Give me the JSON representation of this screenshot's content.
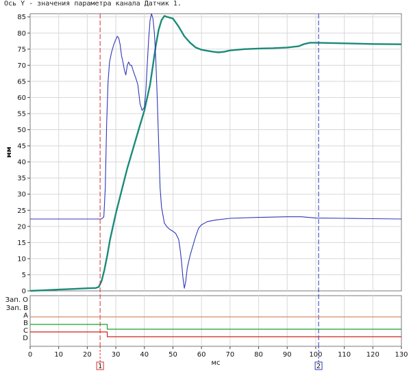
{
  "caption": "Ось Y - значения параметра канала Датчик 1.",
  "chart_data": {
    "type": "line",
    "ylabel": "мм",
    "xlabel": "мс",
    "xlim": [
      0,
      130
    ],
    "ylim": [
      0,
      86
    ],
    "x_ticks": [
      0,
      10,
      20,
      30,
      40,
      50,
      60,
      70,
      80,
      90,
      100,
      110,
      120,
      130
    ],
    "y_ticks": [
      0,
      5,
      10,
      15,
      20,
      25,
      30,
      35,
      40,
      45,
      50,
      55,
      60,
      65,
      70,
      75,
      80,
      85
    ],
    "grid": true,
    "series": [
      {
        "color": "#1a8a78",
        "points": [
          [
            0,
            0
          ],
          [
            5,
            0.2
          ],
          [
            10,
            0.4
          ],
          [
            15,
            0.6
          ],
          [
            20,
            0.8
          ],
          [
            23,
            0.9
          ],
          [
            24,
            1.2
          ],
          [
            25,
            3
          ],
          [
            26,
            6.5
          ],
          [
            27,
            11
          ],
          [
            28,
            16
          ],
          [
            30,
            24
          ],
          [
            32,
            31
          ],
          [
            34,
            38
          ],
          [
            36,
            44
          ],
          [
            38,
            50
          ],
          [
            40,
            56
          ],
          [
            42,
            64
          ],
          [
            43,
            70
          ],
          [
            44,
            76
          ],
          [
            45,
            81
          ],
          [
            46,
            84
          ],
          [
            47,
            85.3
          ],
          [
            48,
            85
          ],
          [
            50,
            84.5
          ],
          [
            52,
            82
          ],
          [
            54,
            79
          ],
          [
            56,
            77
          ],
          [
            58,
            75.5
          ],
          [
            60,
            74.8
          ],
          [
            62,
            74.5
          ],
          [
            64,
            74.2
          ],
          [
            66,
            74
          ],
          [
            68,
            74.2
          ],
          [
            70,
            74.6
          ],
          [
            75,
            75
          ],
          [
            80,
            75.2
          ],
          [
            85,
            75.3
          ],
          [
            90,
            75.5
          ],
          [
            94,
            75.9
          ],
          [
            96,
            76.6
          ],
          [
            98,
            77
          ],
          [
            100,
            77
          ],
          [
            110,
            76.8
          ],
          [
            120,
            76.6
          ],
          [
            130,
            76.5
          ]
        ]
      },
      {
        "color": "#2e35b8",
        "points": [
          [
            0,
            22.3
          ],
          [
            10,
            22.3
          ],
          [
            20,
            22.3
          ],
          [
            25,
            22.3
          ],
          [
            25.8,
            23
          ],
          [
            26.3,
            32
          ],
          [
            26.8,
            52
          ],
          [
            27.3,
            65
          ],
          [
            27.8,
            71
          ],
          [
            28.5,
            74
          ],
          [
            29.3,
            76.5
          ],
          [
            30,
            78
          ],
          [
            30.5,
            79
          ],
          [
            31,
            78.5
          ],
          [
            31.5,
            76.5
          ],
          [
            32,
            73
          ],
          [
            32.5,
            71
          ],
          [
            33,
            68.5
          ],
          [
            33.5,
            67
          ],
          [
            34,
            70
          ],
          [
            34.5,
            71
          ],
          [
            35,
            70
          ],
          [
            35.5,
            70
          ],
          [
            36,
            68.5
          ],
          [
            37,
            66
          ],
          [
            37.7,
            64
          ],
          [
            38.5,
            58
          ],
          [
            39.2,
            56
          ],
          [
            40,
            57
          ],
          [
            40.5,
            62
          ],
          [
            41,
            70
          ],
          [
            41.5,
            78
          ],
          [
            42,
            84
          ],
          [
            42.5,
            86
          ],
          [
            43,
            84.5
          ],
          [
            43.5,
            80
          ],
          [
            44,
            72
          ],
          [
            44.5,
            60
          ],
          [
            45,
            46
          ],
          [
            45.5,
            32
          ],
          [
            46,
            26
          ],
          [
            47,
            21
          ],
          [
            48,
            19.8
          ],
          [
            49,
            19
          ],
          [
            50,
            18.5
          ],
          [
            51,
            17.8
          ],
          [
            52,
            16
          ],
          [
            52.5,
            13
          ],
          [
            53,
            9
          ],
          [
            53.5,
            4
          ],
          [
            54,
            0.8
          ],
          [
            54.5,
            3
          ],
          [
            55,
            7
          ],
          [
            56,
            11
          ],
          [
            57,
            14
          ],
          [
            58,
            17
          ],
          [
            59,
            19.5
          ],
          [
            60,
            20.5
          ],
          [
            62,
            21.5
          ],
          [
            65,
            22
          ],
          [
            70,
            22.5
          ],
          [
            80,
            22.8
          ],
          [
            90,
            23
          ],
          [
            95,
            23
          ],
          [
            100,
            22.6
          ],
          [
            110,
            22.5
          ],
          [
            120,
            22.4
          ],
          [
            130,
            22.3
          ]
        ]
      }
    ],
    "markers": [
      {
        "label": "1",
        "x": 24.5,
        "color": "#d42a2a"
      },
      {
        "label": "2",
        "x": 101,
        "color": "#2e35b8"
      }
    ],
    "channels": [
      {
        "label": "Зап. О",
        "level": null,
        "color": "#ffffff"
      },
      {
        "label": "Зап. В",
        "level": null,
        "color": "#ffffff"
      },
      {
        "label": "A",
        "level": "high",
        "color": "#d08a6a"
      },
      {
        "label": "B",
        "level": "high",
        "color": "#1aa02a"
      },
      {
        "label": "C",
        "level": "high",
        "color": "#cc2222"
      },
      {
        "label": "D",
        "level": "low",
        "color": "#000000"
      }
    ],
    "channel_events": [
      {
        "channel": "B",
        "x_from": 27,
        "shift": "down"
      },
      {
        "channel": "C",
        "x_from": 27,
        "shift": "down"
      }
    ]
  }
}
